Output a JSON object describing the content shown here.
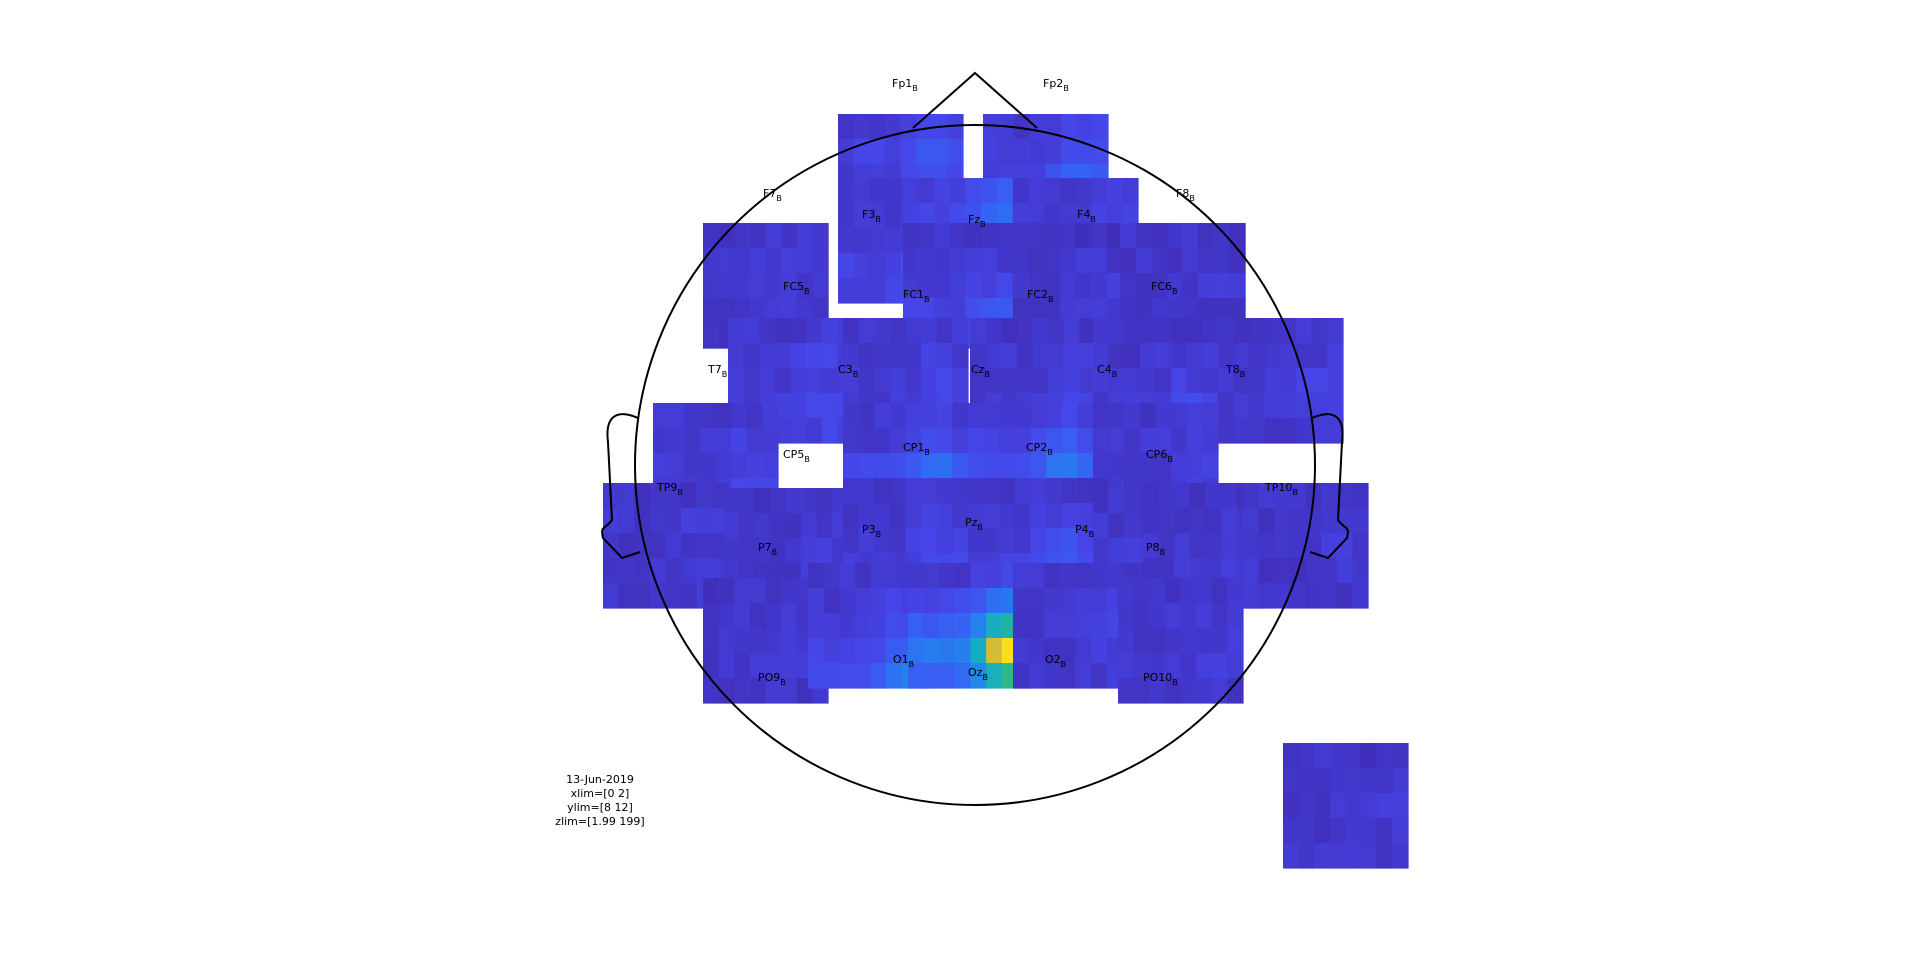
{
  "chart_data": {
    "type": "heatmap",
    "title": "",
    "layout": "topographic multiplot (head outline, one time-frequency tile per channel)",
    "colormap": "parula",
    "colors": {
      "low": "#3e26a8",
      "mid": "#2cb5c0",
      "high": "#f9fb0e",
      "outline": "#000000"
    },
    "xlim": [
      0,
      2
    ],
    "ylim": [
      8,
      12
    ],
    "zlim": [
      1.99,
      199
    ],
    "channel_label_suffix": "B",
    "channels": [
      {
        "label": "Fp1",
        "level": [
          0.12,
          0.18,
          0.15,
          0.35,
          0.72
        ]
      },
      {
        "label": "Fp2",
        "level": [
          0.1,
          0.14,
          0.22,
          0.26,
          0.34
        ]
      },
      {
        "label": "F7",
        "level": [
          0.05,
          0.07,
          0.06,
          0.05,
          0.06
        ]
      },
      {
        "label": "F3",
        "level": [
          0.06,
          0.08,
          0.12,
          0.2,
          0.22
        ]
      },
      {
        "label": "Fz",
        "level": [
          0.18,
          0.24,
          0.32,
          0.3,
          0.14
        ]
      },
      {
        "label": "F4",
        "level": [
          0.07,
          0.1,
          0.14,
          0.12,
          0.08
        ]
      },
      {
        "label": "F8",
        "level": [
          0.05,
          0.06,
          0.07,
          0.06,
          0.05
        ]
      },
      {
        "label": "FC5",
        "level": [
          0.06,
          0.08,
          0.06,
          0.07,
          0.05
        ]
      },
      {
        "label": "FC1",
        "level": [
          0.05,
          0.07,
          0.1,
          0.18,
          0.24
        ]
      },
      {
        "label": "FC2",
        "level": [
          0.04,
          0.06,
          0.08,
          0.07,
          0.05
        ]
      },
      {
        "label": "FC6",
        "level": [
          0.05,
          0.05,
          0.06,
          0.05,
          0.05
        ]
      },
      {
        "label": "T7",
        "level": [
          0.07,
          0.1,
          0.08,
          0.12,
          0.09
        ]
      },
      {
        "label": "C3",
        "level": [
          0.06,
          0.08,
          0.1,
          0.09,
          0.07
        ]
      },
      {
        "label": "Cz",
        "level": [
          0.05,
          0.07,
          0.08,
          0.09,
          0.06
        ]
      },
      {
        "label": "C4",
        "level": [
          0.05,
          0.06,
          0.08,
          0.12,
          0.1
        ]
      },
      {
        "label": "T8",
        "level": [
          0.06,
          0.07,
          0.09,
          0.08,
          0.07
        ]
      },
      {
        "label": "CP5",
        "level": [
          0.06,
          0.08,
          0.09,
          0.11,
          0.08
        ]
      },
      {
        "label": "CP1",
        "level": [
          0.08,
          0.12,
          0.26,
          0.16,
          0.1
        ]
      },
      {
        "label": "CP2",
        "level": [
          0.1,
          0.18,
          0.3,
          0.46,
          0.82
        ]
      },
      {
        "label": "CP6",
        "level": [
          0.06,
          0.07,
          0.08,
          0.07,
          0.06
        ]
      },
      {
        "label": "TP9",
        "level": [
          0.05,
          0.07,
          0.06,
          0.08,
          0.06
        ]
      },
      {
        "label": "P7",
        "level": [
          0.05,
          0.06,
          0.07,
          0.06,
          0.05
        ]
      },
      {
        "label": "P3",
        "level": [
          0.06,
          0.08,
          0.1,
          0.12,
          0.09
        ]
      },
      {
        "label": "Pz",
        "level": [
          0.06,
          0.09,
          0.14,
          0.18,
          0.1
        ]
      },
      {
        "label": "P4",
        "level": [
          0.05,
          0.07,
          0.09,
          0.08,
          0.06
        ]
      },
      {
        "label": "P8",
        "level": [
          0.05,
          0.06,
          0.06,
          0.07,
          0.05
        ]
      },
      {
        "label": "TP10",
        "level": [
          0.05,
          0.06,
          0.07,
          0.06,
          0.05
        ]
      },
      {
        "label": "PO9",
        "level": [
          0.05,
          0.06,
          0.07,
          0.06,
          0.05
        ]
      },
      {
        "label": "O1",
        "level": [
          0.06,
          0.09,
          0.14,
          0.2,
          0.3
        ]
      },
      {
        "label": "Oz",
        "level": [
          0.1,
          0.28,
          0.58,
          0.96,
          0.62
        ]
      },
      {
        "label": "O2",
        "level": [
          0.06,
          0.08,
          0.1,
          0.08,
          0.06
        ]
      },
      {
        "label": "PO10",
        "level": [
          0.05,
          0.06,
          0.07,
          0.08,
          0.06
        ]
      },
      {
        "label": "",
        "level": [
          0.05,
          0.06,
          0.07,
          0.06,
          0.05
        ]
      }
    ]
  },
  "info": {
    "date": "13-Jun-2019",
    "xlim": "xlim=[0 2]",
    "ylim": "ylim=[8 12]",
    "zlim": "zlim=[1.99 199]"
  }
}
